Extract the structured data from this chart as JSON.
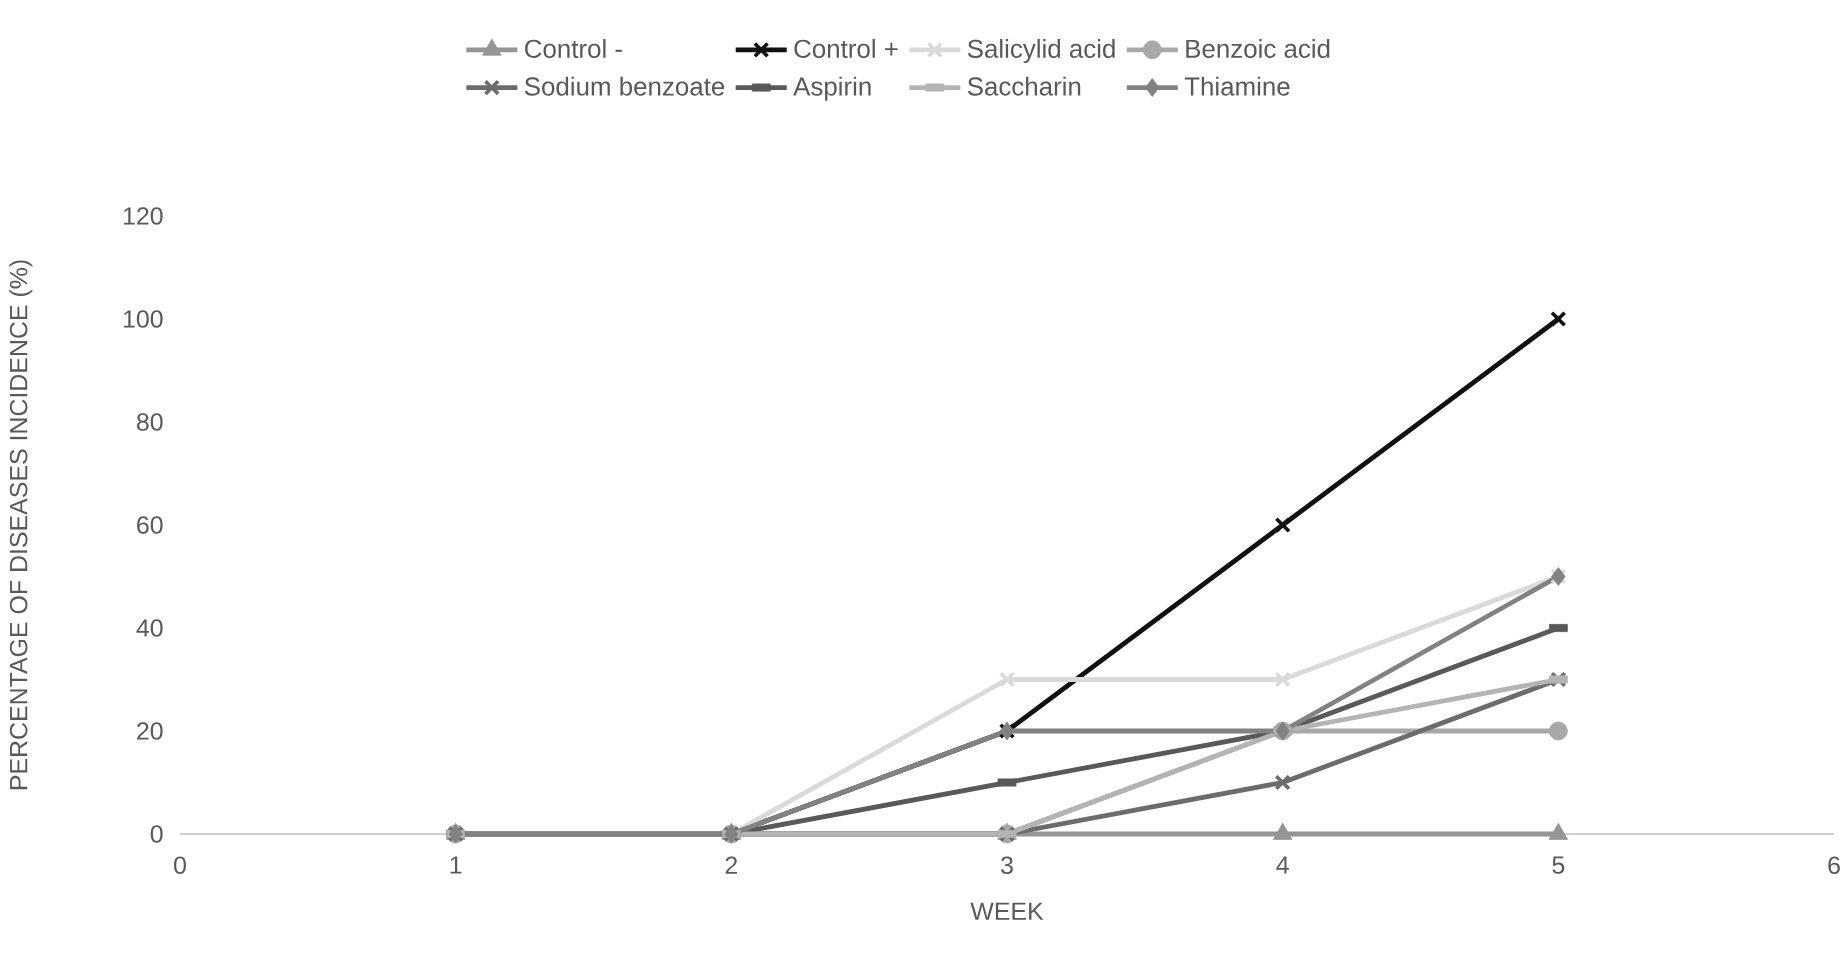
{
  "chart_data": {
    "type": "line",
    "xlabel": "WEEK",
    "ylabel": "PERCENTAGE OF DISEASES INCIDENCE (%)",
    "x": [
      1,
      2,
      3,
      4,
      5
    ],
    "xlim": [
      0,
      6
    ],
    "xticks": [
      0,
      1,
      2,
      3,
      4,
      5,
      6
    ],
    "ylim": [
      0,
      120
    ],
    "yticks": [
      0,
      20,
      40,
      60,
      80,
      100,
      120
    ],
    "legend": "top",
    "line_style": "solid",
    "series": [
      {
        "name": "Control -",
        "color": "#959595",
        "marker": "triangle",
        "values": [
          0,
          0,
          0,
          0,
          0
        ]
      },
      {
        "name": "Control +",
        "color": "#111111",
        "marker": "cross",
        "values": [
          0,
          0,
          20,
          60,
          100
        ]
      },
      {
        "name": "Salicylid acid",
        "color": "#dadada",
        "marker": "cross",
        "values": [
          0,
          0,
          30,
          30,
          50
        ]
      },
      {
        "name": "Benzoic acid",
        "color": "#a8a8a8",
        "marker": "circle",
        "values": [
          0,
          0,
          0,
          20,
          20
        ]
      },
      {
        "name": "Sodium benzoate",
        "color": "#6c6c6c",
        "marker": "cross",
        "values": [
          0,
          0,
          0,
          10,
          30
        ]
      },
      {
        "name": "Aspirin",
        "color": "#595959",
        "marker": "square",
        "values": [
          0,
          0,
          10,
          20,
          40
        ]
      },
      {
        "name": "Saccharin",
        "color": "#b4b4b4",
        "marker": "square",
        "values": [
          0,
          0,
          0,
          20,
          30
        ]
      },
      {
        "name": "Thiamine",
        "color": "#828282",
        "marker": "diamond",
        "values": [
          0,
          0,
          20,
          20,
          50
        ]
      }
    ]
  }
}
